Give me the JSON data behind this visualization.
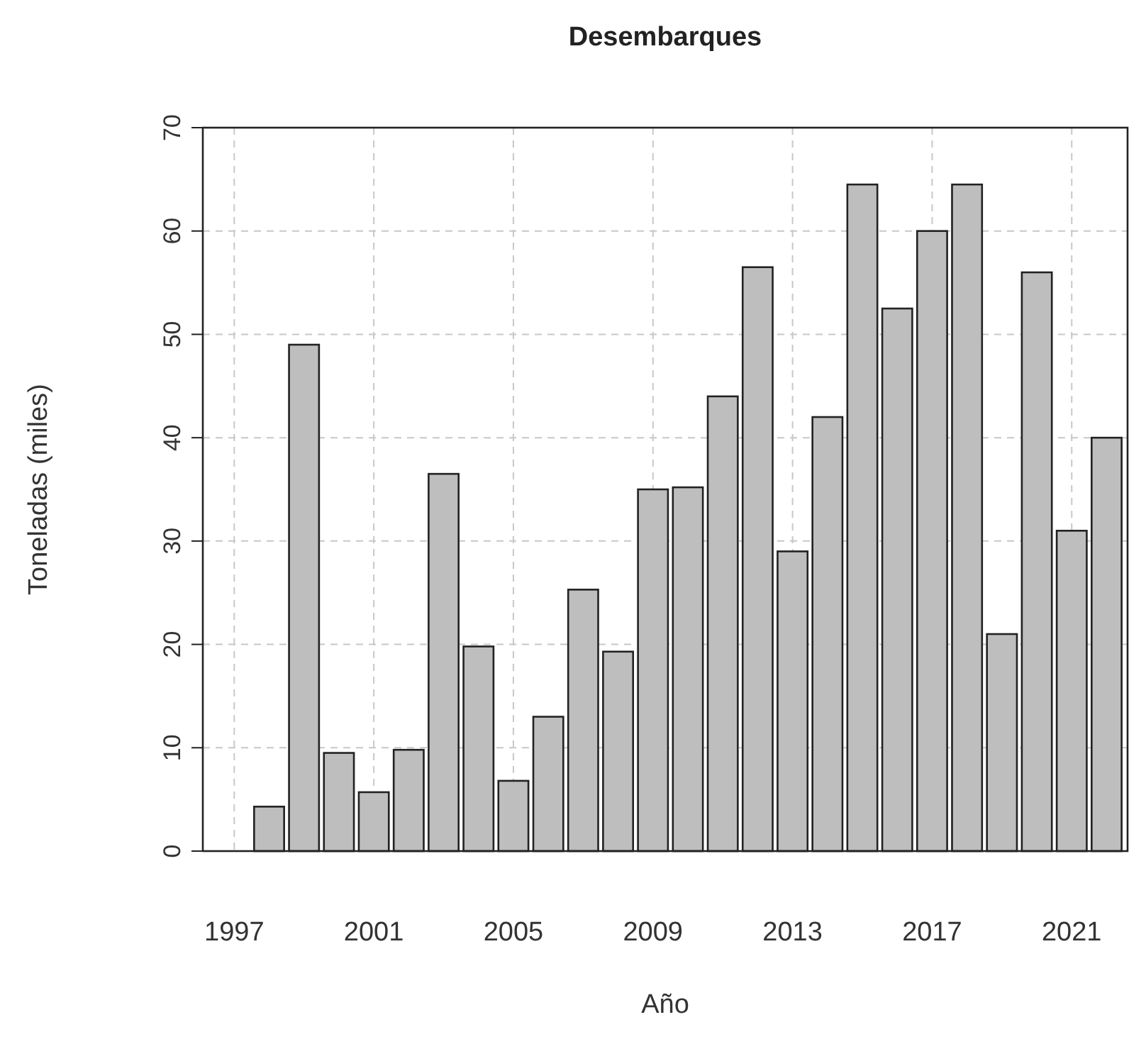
{
  "chart_data": {
    "type": "bar",
    "title": "Desembarques",
    "xlabel": "Año",
    "ylabel": "Toneladas (miles)",
    "x": [
      1998,
      1999,
      2000,
      2001,
      2002,
      2003,
      2004,
      2005,
      2006,
      2007,
      2008,
      2009,
      2010,
      2011,
      2012,
      2013,
      2014,
      2015,
      2016,
      2017,
      2018,
      2019,
      2020,
      2021,
      2022
    ],
    "values": [
      4.3,
      49,
      9.5,
      5.7,
      9.8,
      36.5,
      19.8,
      6.8,
      13,
      25.3,
      19.3,
      35,
      35.2,
      44,
      56.5,
      29,
      42,
      64.5,
      52.5,
      60,
      64.5,
      21,
      56,
      31,
      40
    ],
    "color": "#bebebe",
    "xlim": [
      1996.1,
      2022.6
    ],
    "xticks": [
      1997,
      2001,
      2005,
      2009,
      2013,
      2017,
      2021
    ],
    "ylim": [
      0,
      70
    ],
    "yticks": [
      0,
      10,
      20,
      30,
      40,
      50,
      60,
      70
    ],
    "grid": true
  }
}
